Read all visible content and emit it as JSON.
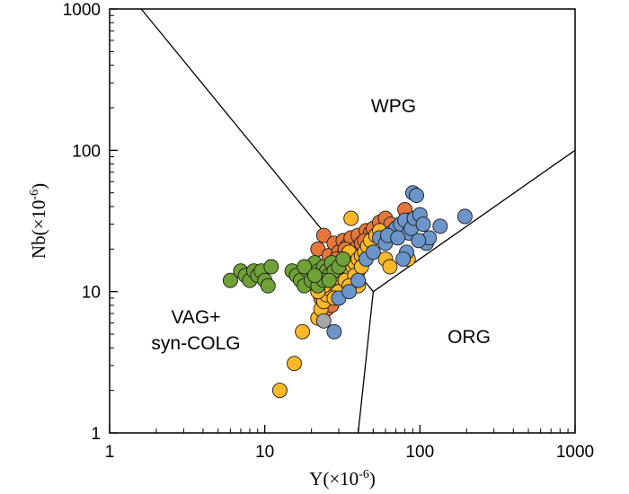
{
  "chart_data": {
    "type": "scatter",
    "x_scale": "log",
    "y_scale": "log",
    "xlim": [
      1,
      1000
    ],
    "ylim": [
      1,
      1000
    ],
    "xlabel": {
      "base": "Y(×10",
      "exp": "-6",
      "close": ")"
    },
    "ylabel": {
      "base": "Nb(×10",
      "exp": "-6",
      "close": ")"
    },
    "x_ticks": [
      1,
      10,
      100,
      1000
    ],
    "y_ticks": [
      1,
      10,
      100,
      1000
    ],
    "x_tick_labels": [
      "1",
      "10",
      "100",
      "1000"
    ],
    "y_tick_labels": [
      "1",
      "10",
      "100",
      "1000"
    ],
    "grid": false,
    "legend": "none",
    "region_labels": [
      {
        "id": "wpg",
        "lines": [
          "WPG"
        ]
      },
      {
        "id": "org",
        "lines": [
          "ORG"
        ]
      },
      {
        "id": "vag",
        "lines": [
          "VAG+",
          "syn-COLG"
        ]
      }
    ],
    "boundaries": [
      [
        [
          1.6,
          1000
        ],
        [
          25,
          25
        ],
        [
          50,
          10
        ],
        [
          40,
          1
        ]
      ],
      [
        [
          50,
          10
        ],
        [
          1000,
          100
        ]
      ]
    ],
    "series": [
      {
        "color": "#e5773a",
        "points": [
          [
            22,
            20
          ],
          [
            24,
            25
          ],
          [
            26,
            18
          ],
          [
            28,
            22
          ],
          [
            30,
            19
          ],
          [
            32,
            23
          ],
          [
            34,
            21
          ],
          [
            36,
            24
          ],
          [
            38,
            20
          ],
          [
            40,
            25
          ],
          [
            42,
            22
          ],
          [
            45,
            27
          ],
          [
            48,
            26
          ],
          [
            50,
            28
          ],
          [
            55,
            31
          ],
          [
            60,
            33
          ],
          [
            65,
            30
          ],
          [
            70,
            28
          ],
          [
            75,
            30
          ],
          [
            80,
            38
          ],
          [
            85,
            32
          ],
          [
            40,
            14
          ],
          [
            36,
            16
          ],
          [
            32,
            18
          ],
          [
            30,
            15
          ],
          [
            28,
            13
          ],
          [
            26,
            12
          ],
          [
            24,
            10
          ],
          [
            23,
            9
          ],
          [
            25,
            7.5
          ],
          [
            27,
            8
          ],
          [
            22,
            12
          ],
          [
            33,
            20
          ],
          [
            44,
            23
          ],
          [
            52,
            25
          ],
          [
            38,
            12
          ],
          [
            29,
            17
          ],
          [
            35,
            14
          ]
        ]
      },
      {
        "color": "#fbb829",
        "points": [
          [
            12.5,
            2
          ],
          [
            15.5,
            3.1
          ],
          [
            17.5,
            5.2
          ],
          [
            22,
            6.5
          ],
          [
            23,
            7.5
          ],
          [
            24,
            8.5
          ],
          [
            25,
            9.5
          ],
          [
            26,
            10.5
          ],
          [
            27,
            11.5
          ],
          [
            28,
            12.5
          ],
          [
            29,
            13.5
          ],
          [
            30,
            14
          ],
          [
            31,
            15
          ],
          [
            32,
            16
          ],
          [
            33,
            17
          ],
          [
            34,
            18
          ],
          [
            35,
            19
          ],
          [
            36,
            14
          ],
          [
            37,
            15
          ],
          [
            38,
            16
          ],
          [
            40,
            17
          ],
          [
            42,
            18
          ],
          [
            44,
            19
          ],
          [
            46,
            21
          ],
          [
            48,
            23
          ],
          [
            52,
            25
          ],
          [
            55,
            27
          ],
          [
            36,
            33
          ],
          [
            40,
            11
          ],
          [
            30,
            10
          ],
          [
            28,
            9
          ],
          [
            24,
            11
          ],
          [
            26,
            13
          ],
          [
            33,
            12
          ],
          [
            38,
            13
          ],
          [
            42,
            15
          ],
          [
            60,
            17
          ],
          [
            64,
            15
          ],
          [
            84,
            17
          ],
          [
            22,
            10
          ],
          [
            35,
            11
          ]
        ]
      },
      {
        "color": "#6fa136",
        "points": [
          [
            6,
            12
          ],
          [
            7,
            14
          ],
          [
            7.5,
            13
          ],
          [
            8,
            12
          ],
          [
            8.5,
            14
          ],
          [
            9,
            13
          ],
          [
            9.5,
            14
          ],
          [
            10,
            12
          ],
          [
            10.5,
            11
          ],
          [
            11,
            15
          ],
          [
            15,
            14
          ],
          [
            16,
            13
          ],
          [
            17,
            12
          ],
          [
            18,
            11
          ],
          [
            19,
            14
          ],
          [
            20,
            15
          ],
          [
            21,
            16
          ],
          [
            22,
            14
          ],
          [
            23,
            13
          ],
          [
            24,
            15
          ],
          [
            25,
            14
          ],
          [
            26,
            13
          ],
          [
            27,
            16
          ],
          [
            28,
            14
          ],
          [
            30,
            15
          ],
          [
            32,
            17
          ],
          [
            18,
            15
          ],
          [
            20,
            12
          ],
          [
            22,
            11
          ],
          [
            24,
            12
          ],
          [
            26,
            12
          ],
          [
            21,
            13
          ]
        ]
      },
      {
        "color": "#6c95c9",
        "points": [
          [
            28,
            5.2
          ],
          [
            30,
            9
          ],
          [
            35,
            10
          ],
          [
            40,
            12
          ],
          [
            45,
            17
          ],
          [
            50,
            19
          ],
          [
            55,
            24
          ],
          [
            60,
            22
          ],
          [
            65,
            26
          ],
          [
            70,
            28
          ],
          [
            75,
            30
          ],
          [
            80,
            32
          ],
          [
            85,
            26
          ],
          [
            88,
            28
          ],
          [
            90,
            50
          ],
          [
            95,
            48
          ],
          [
            92,
            33
          ],
          [
            100,
            35
          ],
          [
            105,
            30
          ],
          [
            110,
            22
          ],
          [
            115,
            24
          ],
          [
            98,
            23
          ],
          [
            135,
            29
          ],
          [
            195,
            34
          ],
          [
            62,
            25
          ],
          [
            72,
            24
          ],
          [
            82,
            19
          ],
          [
            78,
            17
          ]
        ]
      },
      {
        "color": "#a6a6a6",
        "points": [
          [
            24,
            6.2
          ]
        ]
      }
    ]
  }
}
